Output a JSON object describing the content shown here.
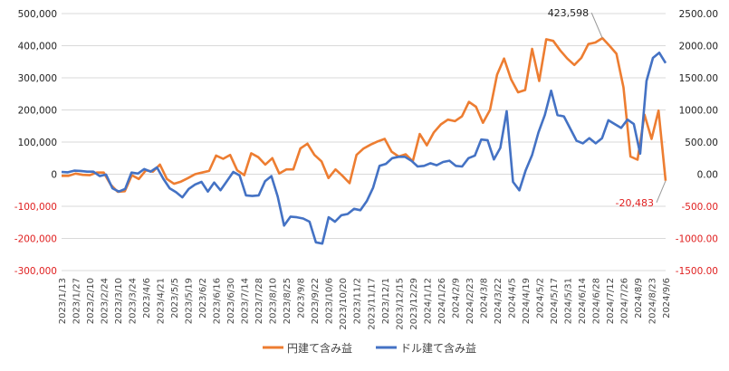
{
  "chart_data": {
    "type": "line",
    "title": "",
    "xlabel": "",
    "ylabel": "",
    "y_left": {
      "range": [
        -300000,
        500000
      ],
      "ticks": [
        -300000,
        -200000,
        -100000,
        0,
        100000,
        200000,
        300000,
        400000,
        500000
      ],
      "tick_labels": [
        "-300,000",
        "-200,000",
        "-100,000",
        "0",
        "100,000",
        "200,000",
        "300,000",
        "400,000",
        "500,000"
      ],
      "positive_color": "#222222",
      "negative_color": "#e02020"
    },
    "y_right": {
      "range": [
        -1500,
        2500
      ],
      "ticks": [
        -1500,
        -1000,
        -500,
        0,
        500,
        1000,
        1500,
        2000,
        2500
      ],
      "tick_labels": [
        "-1500.00",
        "-1000.00",
        "-500.00",
        "0.00",
        "500.00",
        "1000.00",
        "1500.00",
        "2000.00",
        "2500.00"
      ],
      "positive_color": "#222222",
      "negative_color": "#e02020"
    },
    "grid": true,
    "legend_position": "bottom",
    "x_tick_labels": [
      "2023/1/13",
      "2023/1/27",
      "2023/2/10",
      "2023/2/24",
      "2023/3/10",
      "2023/3/24",
      "2023/4/6",
      "2023/4/21",
      "2023/5/5",
      "2023/5/19",
      "2023/6/2",
      "2023/6/16",
      "2023/6/30",
      "2023/7/14",
      "2023/7/28",
      "2023/8/10",
      "2023/8/25",
      "2023/9/8",
      "2023/9/22",
      "2023/10/6",
      "2023/10/20",
      "2023/11/2",
      "2023/11/17",
      "2023/12/1",
      "2023/12/15",
      "2023/12/29",
      "2024/1/12",
      "2024/1/26",
      "2024/2/9",
      "2024/2/23",
      "2024/3/8",
      "2024/3/22",
      "2024/4/5",
      "2024/4/19",
      "2024/5/2",
      "2024/5/17",
      "2024/5/31",
      "2024/6/14",
      "2024/6/28",
      "2024/7/12",
      "2024/7/26",
      "2024/8/9",
      "2024/8/23",
      "2024/9/6"
    ],
    "series": [
      {
        "name": "円建て含み益",
        "axis": "left",
        "color": "#ed7d31",
        "values": [
          -5000,
          -5000,
          2000,
          -2000,
          -3000,
          5000,
          5000,
          -33000,
          -55000,
          -53000,
          -3000,
          -15000,
          12000,
          8000,
          30000,
          -15000,
          -30000,
          -23000,
          -12000,
          0,
          5000,
          10000,
          58000,
          48000,
          60000,
          12000,
          -3000,
          65000,
          53000,
          30000,
          50000,
          2000,
          15000,
          15000,
          80000,
          95000,
          60000,
          40000,
          -12000,
          15000,
          -5000,
          -28000,
          60000,
          80000,
          92000,
          102000,
          110000,
          70000,
          55000,
          62000,
          40000,
          125000,
          90000,
          130000,
          155000,
          170000,
          165000,
          180000,
          225000,
          210000,
          160000,
          200000,
          310000,
          360000,
          295000,
          255000,
          262000,
          390000,
          290000,
          420000,
          415000,
          385000,
          360000,
          340000,
          362000,
          405000,
          410000,
          423598,
          400000,
          375000,
          270000,
          55000,
          45000,
          185000,
          110000,
          198000,
          -20483
        ]
      },
      {
        "name": "ドル建て含み益",
        "axis": "right",
        "color": "#4472c4",
        "values": [
          35,
          30,
          55,
          50,
          40,
          40,
          -30,
          -5,
          -220,
          -270,
          -230,
          25,
          10,
          80,
          40,
          105,
          -70,
          -220,
          -280,
          -360,
          -230,
          -160,
          -120,
          -270,
          -130,
          -250,
          -110,
          35,
          -20,
          -330,
          -340,
          -330,
          -110,
          -30,
          -350,
          -800,
          -660,
          -670,
          -690,
          -740,
          -1060,
          -1080,
          -670,
          -740,
          -640,
          -620,
          -540,
          -560,
          -420,
          -210,
          130,
          160,
          250,
          270,
          270,
          210,
          120,
          130,
          170,
          140,
          190,
          210,
          130,
          120,
          250,
          290,
          540,
          530,
          230,
          410,
          980,
          -120,
          -250,
          60,
          300,
          650,
          920,
          1300,
          920,
          900,
          710,
          520,
          480,
          560,
          480,
          560,
          840,
          780,
          720,
          850,
          780,
          320,
          1450,
          1810,
          1890,
          1730
        ]
      }
    ],
    "annotations": [
      {
        "text": "423,598",
        "series": "円建て含み益"
      },
      {
        "text": "-20,483",
        "series": "円建て含み益"
      }
    ]
  },
  "legend": {
    "yen_label": "円建て含み益",
    "usd_label": "ドル建て含み益"
  }
}
